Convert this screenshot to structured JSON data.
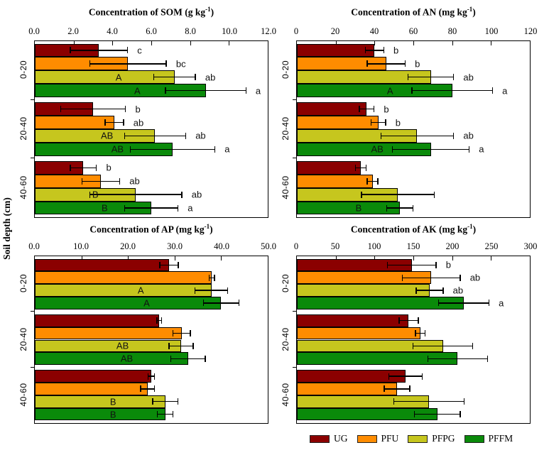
{
  "chart_data": {
    "type": "bar",
    "orientation": "horizontal",
    "grid": false,
    "y_axis_label": "Soil depth (cm)",
    "depth_categories": [
      "0-20",
      "20-40",
      "40-60"
    ],
    "series": [
      {
        "name": "UG",
        "color": "#8B0000"
      },
      {
        "name": "PFU",
        "color": "#FF8C00"
      },
      {
        "name": "PFPG",
        "color": "#C6C61E"
      },
      {
        "name": "PFFM",
        "color": "#0A8A0A"
      }
    ],
    "legend_position": "bottom-right",
    "panels": [
      {
        "id": "SOM",
        "title": {
          "pre": "Concentration of SOM (g kg",
          "sup": "-1",
          "post": ")"
        },
        "xlim": [
          0,
          12
        ],
        "tick_labels": [
          "0.0",
          "2.0",
          "4.0",
          "6.0",
          "8.0",
          "10.0",
          "12.0"
        ],
        "groups": [
          {
            "depth": "0-20",
            "bars": [
              {
                "series": "UG",
                "value": 3.3,
                "error": 1.5,
                "letter": "c",
                "inner": null
              },
              {
                "series": "PFU",
                "value": 4.8,
                "error": 2.0,
                "letter": "bc",
                "inner": null
              },
              {
                "series": "PFPG",
                "value": 7.2,
                "error": 1.1,
                "letter": "ab",
                "inner": "A"
              },
              {
                "series": "PFFM",
                "value": 8.8,
                "error": 2.1,
                "letter": "a",
                "inner": "A"
              }
            ]
          },
          {
            "depth": "20-40",
            "bars": [
              {
                "series": "UG",
                "value": 3.0,
                "error": 1.7,
                "letter": "b",
                "inner": null
              },
              {
                "series": "PFU",
                "value": 4.1,
                "error": 0.5,
                "letter": "ab",
                "inner": null
              },
              {
                "series": "PFPG",
                "value": 6.2,
                "error": 1.6,
                "letter": "ab",
                "inner": "AB"
              },
              {
                "series": "PFFM",
                "value": 7.1,
                "error": 2.2,
                "letter": "a",
                "inner": "AB"
              }
            ]
          },
          {
            "depth": "40-60",
            "bars": [
              {
                "series": "UG",
                "value": 2.5,
                "error": 0.7,
                "letter": "b",
                "inner": null
              },
              {
                "series": "PFU",
                "value": 3.4,
                "error": 1.0,
                "letter": "ab",
                "inner": null
              },
              {
                "series": "PFPG",
                "value": 5.2,
                "error": 2.4,
                "letter": "ab",
                "inner": "B"
              },
              {
                "series": "PFFM",
                "value": 6.0,
                "error": 1.4,
                "letter": "a",
                "inner": "B"
              }
            ]
          }
        ]
      },
      {
        "id": "AN",
        "title": {
          "pre": "Concentration of AN (mg kg",
          "sup": "-1",
          "post": ")"
        },
        "xlim": [
          0,
          120
        ],
        "tick_labels": [
          "0",
          "20",
          "40",
          "60",
          "80",
          "100",
          "120"
        ],
        "groups": [
          {
            "depth": "0-20",
            "bars": [
              {
                "series": "UG",
                "value": 40,
                "error": 5,
                "letter": "b",
                "inner": null
              },
              {
                "series": "PFU",
                "value": 46,
                "error": 10,
                "letter": "b",
                "inner": null
              },
              {
                "series": "PFPG",
                "value": 69,
                "error": 12,
                "letter": "ab",
                "inner": null
              },
              {
                "series": "PFFM",
                "value": 80,
                "error": 21,
                "letter": "a",
                "inner": "A"
              }
            ]
          },
          {
            "depth": "20-40",
            "bars": [
              {
                "series": "UG",
                "value": 36,
                "error": 4,
                "letter": "b",
                "inner": null
              },
              {
                "series": "PFU",
                "value": 42,
                "error": 4,
                "letter": "b",
                "inner": null
              },
              {
                "series": "PFPG",
                "value": 62,
                "error": 19,
                "letter": "ab",
                "inner": null
              },
              {
                "series": "PFFM",
                "value": 69,
                "error": 20,
                "letter": "a",
                "inner": "AB"
              }
            ]
          },
          {
            "depth": "40-60",
            "bars": [
              {
                "series": "UG",
                "value": 33,
                "error": 3,
                "letter": null,
                "inner": null
              },
              {
                "series": "PFU",
                "value": 39,
                "error": 3,
                "letter": null,
                "inner": null
              },
              {
                "series": "PFPG",
                "value": 52,
                "error": 19,
                "letter": null,
                "inner": null
              },
              {
                "series": "PFFM",
                "value": 53,
                "error": 7,
                "letter": null,
                "inner": "B"
              }
            ]
          }
        ]
      },
      {
        "id": "AP",
        "title": {
          "pre": "Concentration of AP (mg kg",
          "sup": "-1",
          "post": ")"
        },
        "xlim": [
          0,
          50
        ],
        "tick_labels": [
          "0.0",
          "10.0",
          "20.0",
          "30.0",
          "40.0",
          "50.0"
        ],
        "groups": [
          {
            "depth": "0-20",
            "bars": [
              {
                "series": "UG",
                "value": 28.8,
                "error": 2.1,
                "letter": null,
                "inner": null
              },
              {
                "series": "PFU",
                "value": 38.0,
                "error": 0.7,
                "letter": null,
                "inner": null
              },
              {
                "series": "PFPG",
                "value": 37.9,
                "error": 3.6,
                "letter": null,
                "inner": "A"
              },
              {
                "series": "PFFM",
                "value": 40.0,
                "error": 3.9,
                "letter": null,
                "inner": "A"
              }
            ]
          },
          {
            "depth": "20-40",
            "bars": [
              {
                "series": "UG",
                "value": 26.7,
                "error": 0.6,
                "letter": null,
                "inner": null
              },
              {
                "series": "PFU",
                "value": 31.5,
                "error": 2.0,
                "letter": null,
                "inner": null
              },
              {
                "series": "PFPG",
                "value": 31.4,
                "error": 2.7,
                "letter": null,
                "inner": "AB"
              },
              {
                "series": "PFFM",
                "value": 32.9,
                "error": 3.8,
                "letter": null,
                "inner": "AB"
              }
            ]
          },
          {
            "depth": "40-60",
            "bars": [
              {
                "series": "UG",
                "value": 25.0,
                "error": 0.8,
                "letter": null,
                "inner": null
              },
              {
                "series": "PFU",
                "value": 24.2,
                "error": 1.6,
                "letter": null,
                "inner": null
              },
              {
                "series": "PFPG",
                "value": 28.0,
                "error": 2.8,
                "letter": null,
                "inner": "B"
              },
              {
                "series": "PFFM",
                "value": 28.0,
                "error": 1.8,
                "letter": null,
                "inner": "B"
              }
            ]
          }
        ]
      },
      {
        "id": "AK",
        "title": {
          "pre": "Concentration of AK (mg kg",
          "sup": "-1",
          "post": ")"
        },
        "xlim": [
          0,
          300
        ],
        "tick_labels": [
          "0",
          "50",
          "100",
          "150",
          "200",
          "250",
          "300"
        ],
        "groups": [
          {
            "depth": "0-20",
            "bars": [
              {
                "series": "UG",
                "value": 148,
                "error": 32,
                "letter": "b",
                "inner": null
              },
              {
                "series": "PFU",
                "value": 173,
                "error": 38,
                "letter": "ab",
                "inner": null
              },
              {
                "series": "PFPG",
                "value": 171,
                "error": 18,
                "letter": "ab",
                "inner": null
              },
              {
                "series": "PFFM",
                "value": 215,
                "error": 33,
                "letter": "a",
                "inner": null
              }
            ]
          },
          {
            "depth": "20-40",
            "bars": [
              {
                "series": "UG",
                "value": 144,
                "error": 13,
                "letter": null,
                "inner": null
              },
              {
                "series": "PFU",
                "value": 159,
                "error": 7,
                "letter": null,
                "inner": null
              },
              {
                "series": "PFPG",
                "value": 188,
                "error": 39,
                "letter": null,
                "inner": null
              },
              {
                "series": "PFFM",
                "value": 207,
                "error": 39,
                "letter": null,
                "inner": null
              }
            ]
          },
          {
            "depth": "40-60",
            "bars": [
              {
                "series": "UG",
                "value": 140,
                "error": 22,
                "letter": null,
                "inner": null
              },
              {
                "series": "PFU",
                "value": 129,
                "error": 17,
                "letter": null,
                "inner": null
              },
              {
                "series": "PFPG",
                "value": 170,
                "error": 46,
                "letter": null,
                "inner": null
              },
              {
                "series": "PFFM",
                "value": 181,
                "error": 30,
                "letter": null,
                "inner": null
              }
            ]
          }
        ]
      }
    ]
  }
}
